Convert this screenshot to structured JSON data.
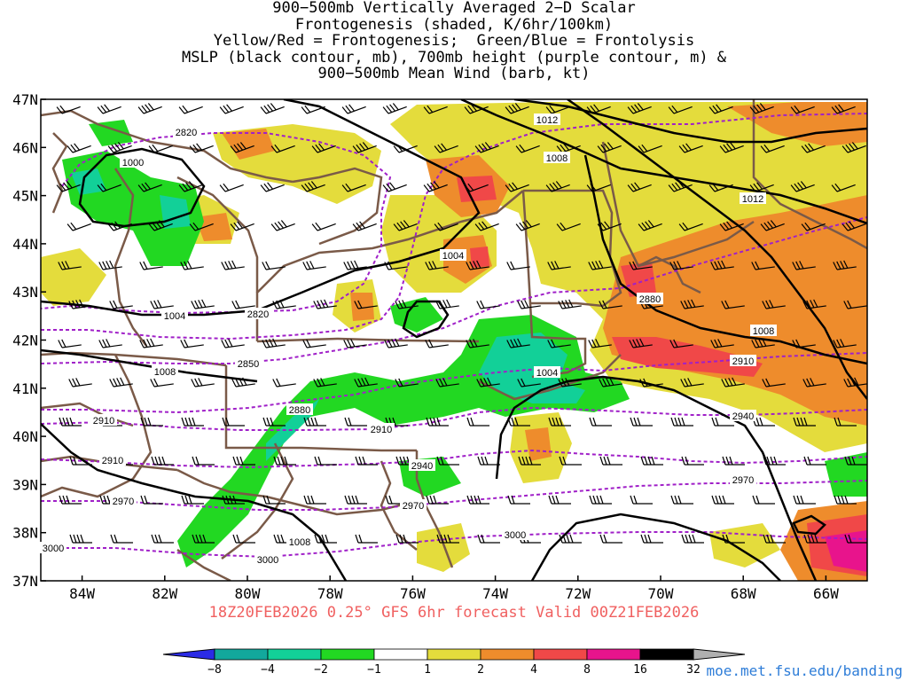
{
  "title": {
    "lines": [
      "900−500mb Vertically Averaged 2−D Scalar",
      "Frontogenesis (shaded, K/6hr/100km)",
      "Yellow/Red = Frontogenesis;  Green/Blue = Frontolysis",
      "MSLP (black contour, mb), 700mb height (purple contour, m) &",
      "900−500mb Mean Wind (barb, kt)"
    ]
  },
  "map": {
    "lon_range": [
      -85,
      -65
    ],
    "lat_range": [
      37,
      47
    ],
    "lat_labels": [
      "47N",
      "46N",
      "45N",
      "44N",
      "43N",
      "42N",
      "41N",
      "40N",
      "39N",
      "38N",
      "37N"
    ],
    "lon_labels": [
      "84W",
      "82W",
      "80W",
      "78W",
      "76W",
      "74W",
      "72W",
      "70W",
      "68W",
      "66W"
    ],
    "mslp_labels": [
      "1012",
      "1008",
      "1012",
      "1000",
      "1004",
      "1004",
      "1008",
      "1008",
      "1004",
      "1008"
    ],
    "height_labels": [
      "2820",
      "2820",
      "2850",
      "2880",
      "2880",
      "2910",
      "2910",
      "2910",
      "2910",
      "2940",
      "2940",
      "2970",
      "2970",
      "2970",
      "3000",
      "3000",
      "3000"
    ],
    "colors": {
      "mslp": "#000000",
      "height": "#a020c8",
      "borders": "#7a5a48",
      "shade_neg8": "#2b2be6",
      "shade_neg4": "#12a89c",
      "shade_neg2": "#12d098",
      "shade_neg1": "#22d822",
      "shade_pos1": "#e4dc3c",
      "shade_pos2": "#ee8c2c",
      "shade_pos4": "#f04848",
      "shade_pos8": "#e8148c",
      "shade_pos16": "#000000",
      "shade_pos32": "#b0b0b0"
    }
  },
  "colorbar": {
    "labels": [
      "−8",
      "−4",
      "−2",
      "−1",
      "1",
      "2",
      "4",
      "8",
      "16",
      "32"
    ]
  },
  "forecast": "18Z20FEB2026 0.25° GFS 6hr forecast Valid 00Z21FEB2026",
  "source": "moe.met.fsu.edu/banding"
}
